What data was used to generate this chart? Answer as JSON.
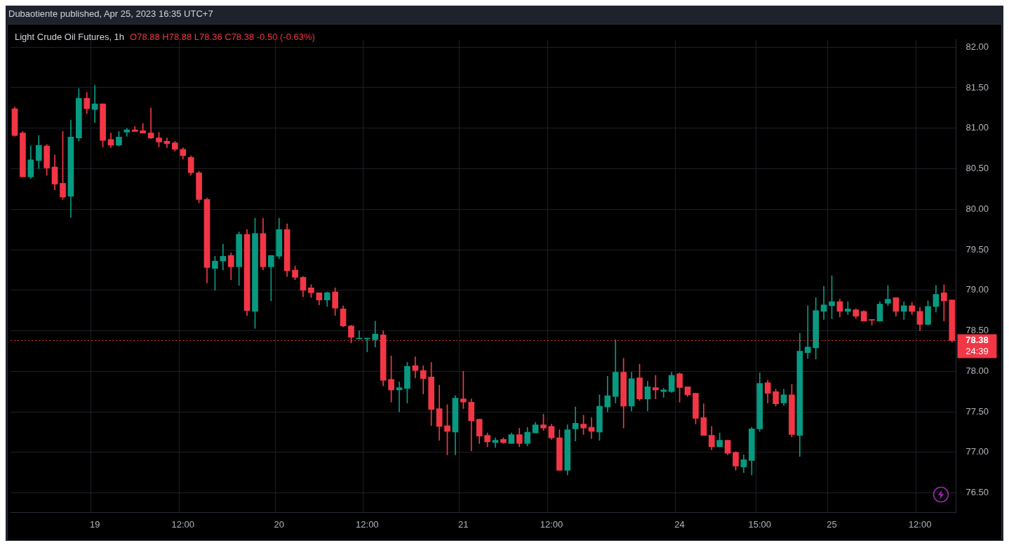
{
  "chart_data": {
    "type": "candlestick",
    "title": "Dubaotiente published, Apr 25, 2023 16:35 UTC+7",
    "subtitle": "Light Crude Oil Futures, 1h",
    "annotations": [
      "O78.88 H78.88 L78.36 C78.38 -0.50 (-0.63%)",
      "24:39"
    ],
    "categories": [
      null,
      null,
      null,
      null,
      null,
      null,
      null,
      null,
      null,
      null,
      "19",
      null,
      null,
      null,
      null,
      null,
      null,
      null,
      null,
      null,
      null,
      "12:00",
      null,
      null,
      null,
      null,
      null,
      null,
      null,
      null,
      null,
      null,
      null,
      "20",
      null,
      null,
      null,
      null,
      null,
      null,
      null,
      null,
      null,
      null,
      "12:00",
      null,
      null,
      null,
      null,
      null,
      null,
      null,
      null,
      null,
      null,
      null,
      "21",
      null,
      null,
      null,
      null,
      null,
      null,
      null,
      null,
      null,
      null,
      "12:00",
      null,
      null,
      null,
      null,
      null,
      null,
      null,
      null,
      null,
      null,
      null,
      null,
      null,
      null,
      null,
      "24",
      null,
      null,
      null,
      null,
      null,
      null,
      null,
      null,
      null,
      "15:00",
      null,
      null,
      null,
      null,
      null,
      null,
      null,
      null,
      "25",
      null,
      null,
      null,
      null,
      null,
      null,
      null,
      null,
      null,
      null,
      "12:00",
      null,
      null,
      null,
      null
    ],
    "ohlc": [
      [
        81.24,
        81.26,
        80.9,
        80.91
      ],
      [
        80.94,
        80.96,
        80.4,
        80.4
      ],
      [
        80.4,
        80.78,
        80.38,
        80.61
      ],
      [
        80.6,
        80.91,
        80.5,
        80.79
      ],
      [
        80.78,
        80.8,
        80.42,
        80.51
      ],
      [
        80.52,
        80.67,
        80.24,
        80.31
      ],
      [
        80.32,
        80.96,
        80.12,
        80.15
      ],
      [
        80.16,
        81.1,
        79.9,
        80.89
      ],
      [
        80.88,
        81.49,
        80.84,
        81.37
      ],
      [
        81.37,
        81.44,
        81.18,
        81.24
      ],
      [
        81.23,
        81.53,
        81.07,
        81.3
      ],
      [
        81.3,
        81.3,
        80.77,
        80.85
      ],
      [
        80.86,
        80.94,
        80.76,
        80.79
      ],
      [
        80.79,
        80.96,
        80.78,
        80.89
      ],
      [
        80.95,
        81.0,
        80.9,
        80.98
      ],
      [
        80.98,
        81.02,
        80.96,
        80.96
      ],
      [
        80.97,
        81.06,
        80.94,
        80.94
      ],
      [
        80.94,
        81.25,
        80.87,
        80.88
      ],
      [
        80.88,
        80.95,
        80.77,
        80.83
      ],
      [
        80.84,
        80.88,
        80.76,
        80.81
      ],
      [
        80.82,
        80.84,
        80.72,
        80.74
      ],
      [
        80.74,
        80.76,
        80.62,
        80.66
      ],
      [
        80.64,
        80.66,
        80.42,
        80.45
      ],
      [
        80.45,
        80.47,
        80.08,
        80.12
      ],
      [
        80.12,
        80.14,
        79.09,
        79.28
      ],
      [
        79.27,
        79.42,
        79.0,
        79.36
      ],
      [
        79.36,
        79.57,
        79.25,
        79.42
      ],
      [
        79.43,
        79.46,
        79.13,
        79.29
      ],
      [
        79.29,
        79.72,
        79.06,
        79.69
      ],
      [
        79.69,
        79.75,
        78.69,
        78.75
      ],
      [
        78.74,
        79.89,
        78.53,
        79.7
      ],
      [
        79.7,
        79.89,
        79.25,
        79.29
      ],
      [
        79.29,
        79.43,
        78.87,
        79.43
      ],
      [
        79.42,
        79.89,
        79.39,
        79.75
      ],
      [
        79.75,
        79.82,
        79.17,
        79.24
      ],
      [
        79.25,
        79.3,
        79.13,
        79.16
      ],
      [
        79.16,
        79.17,
        78.92,
        79.0
      ],
      [
        79.03,
        79.07,
        78.91,
        78.97
      ],
      [
        78.97,
        78.97,
        78.82,
        78.88
      ],
      [
        78.88,
        78.98,
        78.8,
        78.97
      ],
      [
        78.98,
        79.03,
        78.69,
        78.78
      ],
      [
        78.77,
        78.81,
        78.55,
        78.56
      ],
      [
        78.56,
        78.57,
        78.35,
        78.42
      ],
      [
        78.4,
        78.5,
        78.4,
        78.41
      ],
      [
        78.4,
        78.41,
        78.24,
        78.41
      ],
      [
        78.39,
        78.62,
        78.3,
        78.46
      ],
      [
        78.45,
        78.5,
        77.82,
        77.89
      ],
      [
        77.9,
        78.19,
        77.62,
        77.77
      ],
      [
        77.77,
        77.87,
        77.5,
        77.8
      ],
      [
        77.79,
        78.11,
        77.61,
        78.06
      ],
      [
        78.07,
        78.18,
        77.92,
        78.01
      ],
      [
        78.01,
        78.07,
        77.72,
        77.91
      ],
      [
        77.93,
        78.11,
        77.33,
        77.53
      ],
      [
        77.54,
        77.83,
        77.15,
        77.32
      ],
      [
        77.33,
        77.59,
        76.97,
        77.26
      ],
      [
        77.25,
        77.7,
        76.97,
        77.67
      ],
      [
        77.66,
        78.0,
        77.54,
        77.62
      ],
      [
        77.62,
        77.66,
        77.02,
        77.39
      ],
      [
        77.41,
        77.41,
        77.11,
        77.2
      ],
      [
        77.21,
        77.24,
        77.07,
        77.13
      ],
      [
        77.12,
        77.18,
        77.06,
        77.15
      ],
      [
        77.16,
        77.18,
        77.11,
        77.12
      ],
      [
        77.11,
        77.24,
        77.11,
        77.22
      ],
      [
        77.22,
        77.3,
        77.07,
        77.11
      ],
      [
        77.11,
        77.31,
        77.08,
        77.25
      ],
      [
        77.24,
        77.37,
        77.24,
        77.34
      ],
      [
        77.34,
        77.47,
        77.27,
        77.3
      ],
      [
        77.32,
        77.35,
        77.16,
        77.18
      ],
      [
        77.18,
        77.28,
        76.78,
        76.78
      ],
      [
        76.78,
        77.34,
        76.72,
        77.28
      ],
      [
        77.29,
        77.56,
        77.14,
        77.36
      ],
      [
        77.35,
        77.46,
        77.22,
        77.3
      ],
      [
        77.31,
        77.43,
        77.17,
        77.26
      ],
      [
        77.25,
        77.71,
        77.15,
        77.57
      ],
      [
        77.56,
        77.94,
        77.5,
        77.7
      ],
      [
        77.69,
        78.39,
        77.61,
        77.99
      ],
      [
        77.99,
        78.16,
        77.3,
        77.57
      ],
      [
        77.57,
        77.99,
        77.51,
        77.91
      ],
      [
        77.92,
        78.09,
        77.64,
        77.66
      ],
      [
        77.66,
        77.88,
        77.51,
        77.81
      ],
      [
        77.8,
        77.95,
        77.66,
        77.77
      ],
      [
        77.75,
        77.79,
        77.68,
        77.77
      ],
      [
        77.75,
        77.99,
        77.74,
        77.95
      ],
      [
        77.97,
        77.98,
        77.62,
        77.8
      ],
      [
        77.81,
        77.81,
        77.69,
        77.71
      ],
      [
        77.73,
        77.73,
        77.35,
        77.42
      ],
      [
        77.43,
        77.6,
        77.21,
        77.21
      ],
      [
        77.21,
        77.32,
        77.03,
        77.07
      ],
      [
        77.07,
        77.24,
        77.07,
        77.15
      ],
      [
        77.15,
        77.15,
        76.97,
        76.99
      ],
      [
        77.0,
        77.01,
        76.78,
        76.83
      ],
      [
        76.82,
        76.97,
        76.75,
        76.91
      ],
      [
        76.9,
        77.31,
        76.72,
        77.29
      ],
      [
        77.29,
        77.98,
        77.26,
        77.85
      ],
      [
        77.86,
        77.89,
        77.61,
        77.73
      ],
      [
        77.75,
        77.78,
        77.57,
        77.6
      ],
      [
        77.61,
        77.78,
        77.58,
        77.71
      ],
      [
        77.71,
        77.84,
        77.19,
        77.22
      ],
      [
        77.21,
        78.47,
        76.95,
        78.25
      ],
      [
        78.23,
        78.81,
        78.16,
        78.3
      ],
      [
        78.29,
        78.91,
        78.15,
        78.75
      ],
      [
        78.74,
        79.05,
        78.64,
        78.82
      ],
      [
        78.81,
        79.18,
        78.65,
        78.86
      ],
      [
        78.86,
        78.89,
        78.67,
        78.74
      ],
      [
        78.74,
        78.86,
        78.7,
        78.77
      ],
      [
        78.76,
        78.77,
        78.65,
        78.68
      ],
      [
        78.74,
        78.75,
        78.62,
        78.62
      ],
      [
        78.64,
        78.64,
        78.57,
        78.63
      ],
      [
        78.62,
        78.86,
        78.62,
        78.83
      ],
      [
        78.84,
        79.06,
        78.81,
        78.89
      ],
      [
        78.91,
        78.91,
        78.68,
        78.74
      ],
      [
        78.74,
        78.86,
        78.64,
        78.81
      ],
      [
        78.81,
        78.85,
        78.7,
        78.74
      ],
      [
        78.74,
        78.79,
        78.5,
        78.58
      ],
      [
        78.58,
        78.87,
        78.57,
        78.8
      ],
      [
        78.8,
        79.06,
        78.73,
        78.95
      ],
      [
        78.97,
        79.07,
        78.62,
        78.87
      ],
      [
        78.88,
        78.88,
        78.36,
        78.38
      ]
    ],
    "colors": [
      "#f23645",
      "#f23645",
      "#089981",
      "#089981",
      "#f23645",
      "#f23645",
      "#f23645",
      "#089981",
      "#089981",
      "#f23645",
      "#089981",
      "#f23645",
      "#f23645",
      "#089981",
      "#089981",
      "#f23645",
      "#f23645",
      "#f23645",
      "#f23645",
      "#f23645",
      "#f23645",
      "#f23645",
      "#f23645",
      "#f23645",
      "#f23645",
      "#089981",
      "#089981",
      "#f23645",
      "#089981",
      "#f23645",
      "#089981",
      "#f23645",
      "#089981",
      "#089981",
      "#f23645",
      "#f23645",
      "#f23645",
      "#f23645",
      "#f23645",
      "#089981",
      "#f23645",
      "#f23645",
      "#f23645",
      "#089981",
      "#089981",
      "#089981",
      "#f23645",
      "#f23645",
      "#089981",
      "#089981",
      "#f23645",
      "#f23645",
      "#f23645",
      "#f23645",
      "#f23645",
      "#089981",
      "#f23645",
      "#f23645",
      "#f23645",
      "#f23645",
      "#089981",
      "#f23645",
      "#089981",
      "#f23645",
      "#089981",
      "#089981",
      "#f23645",
      "#f23645",
      "#f23645",
      "#089981",
      "#089981",
      "#f23645",
      "#f23645",
      "#089981",
      "#089981",
      "#089981",
      "#f23645",
      "#089981",
      "#f23645",
      "#089981",
      "#f23645",
      "#089981",
      "#089981",
      "#f23645",
      "#f23645",
      "#f23645",
      "#f23645",
      "#f23645",
      "#089981",
      "#f23645",
      "#f23645",
      "#089981",
      "#089981",
      "#089981",
      "#f23645",
      "#f23645",
      "#089981",
      "#f23645",
      "#089981",
      "#089981",
      "#089981",
      "#089981",
      "#089981",
      "#f23645",
      "#089981",
      "#f23645",
      "#f23645",
      "#f23645",
      "#089981",
      "#089981",
      "#f23645",
      "#089981",
      "#f23645",
      "#f23645",
      "#089981",
      "#089981",
      "#f23645",
      "#f23645"
    ],
    "ylim": [
      76.26,
      82.09
    ],
    "yticks": [
      {
        "value": 76.5,
        "label": "76.50"
      },
      {
        "value": 77,
        "label": "77.00"
      },
      {
        "value": 77.5,
        "label": "77.50"
      },
      {
        "value": 78,
        "label": "78.00"
      },
      {
        "value": 78.5,
        "label": "78.50"
      },
      {
        "value": 79,
        "label": "79.00"
      },
      {
        "value": 79.5,
        "label": "79.50"
      },
      {
        "value": 80,
        "label": "80.00"
      },
      {
        "value": 80.5,
        "label": "80.50"
      },
      {
        "value": 81,
        "label": "81.00"
      },
      {
        "value": 81.5,
        "label": "81.50"
      },
      {
        "value": 82,
        "label": "82.00"
      }
    ],
    "ref_lines": [
      {
        "axis": "y",
        "value": 78.38,
        "label": "78.38",
        "color": "#f23645",
        "line_style": "dotted"
      }
    ],
    "grid": true,
    "legend": false
  }
}
